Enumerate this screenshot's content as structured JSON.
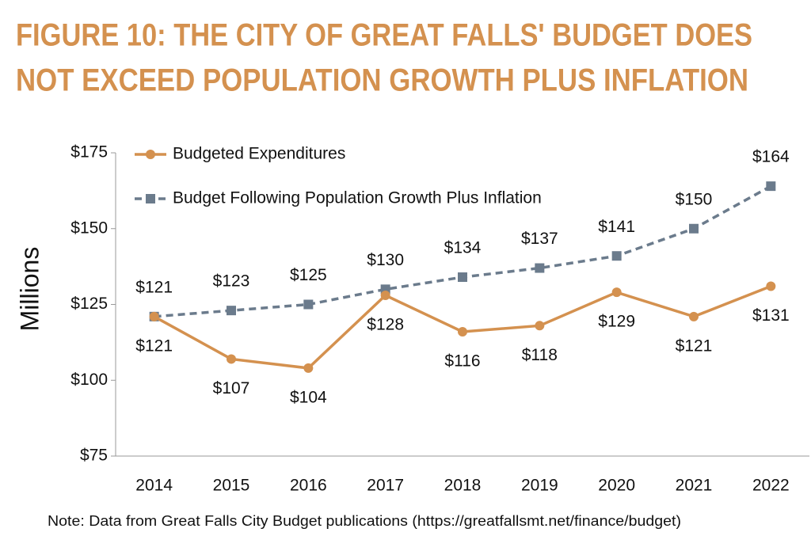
{
  "chart_data": {
    "type": "line",
    "title": [
      "FIGURE 10: THE CITY OF GREAT FALLS' BUDGET DOES",
      "NOT EXCEED POPULATION GROWTH PLUS INFLATION"
    ],
    "y_label": "Millions",
    "note": "Note: Data from Great Falls City Budget publications (https://greatfallsmt.net/finance/budget)",
    "categories": [
      "2014",
      "2015",
      "2016",
      "2017",
      "2018",
      "2019",
      "2020",
      "2021",
      "2022"
    ],
    "series": [
      {
        "name": "Budgeted Expenditures",
        "color": "#d4914f",
        "marker": "circle",
        "dashed": false,
        "label_position": "below",
        "values": [
          121,
          107,
          104,
          128,
          116,
          118,
          129,
          121,
          131
        ],
        "value_labels": [
          "$121",
          "$107",
          "$104",
          "$128",
          "$116",
          "$118",
          "$129",
          "$121",
          "$131"
        ]
      },
      {
        "name": "Budget Following Population Growth Plus Inflation",
        "color": "#6b7b8c",
        "marker": "square",
        "dashed": true,
        "label_position": "above",
        "values": [
          121,
          123,
          125,
          130,
          134,
          137,
          141,
          150,
          164
        ],
        "value_labels": [
          "$121",
          "$123",
          "$125",
          "$130",
          "$134",
          "$137",
          "$141",
          "$150",
          "$164"
        ]
      }
    ],
    "ylim": [
      75,
      175
    ],
    "yticks": [
      {
        "value": 75,
        "label": "$75"
      },
      {
        "value": 100,
        "label": "$100"
      },
      {
        "value": 125,
        "label": "$125"
      },
      {
        "value": 150,
        "label": "$150"
      },
      {
        "value": 175,
        "label": "$175"
      }
    ],
    "legend": "upper left"
  }
}
